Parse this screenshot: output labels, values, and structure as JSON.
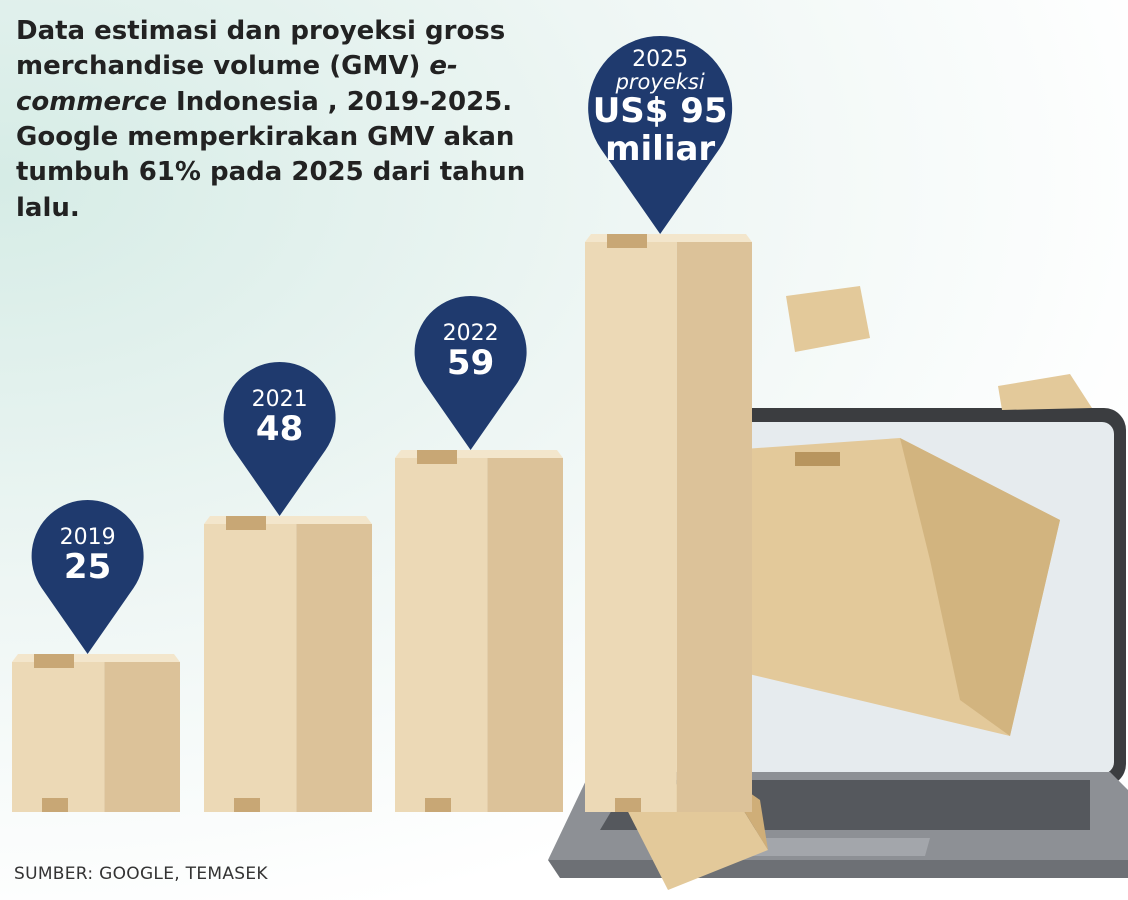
{
  "chart_data": {
    "type": "bar",
    "title": [
      "Data estimasi dan proyeksi gross merchandise volume (GMV) ",
      "e-commerce",
      " Indonesia , 2019-2025. Google memperkirakan GMV akan tumbuh 61% pada 2025 dari tahun lalu."
    ],
    "categories": [
      "2019",
      "2021",
      "2022",
      "2025"
    ],
    "values": [
      25,
      48,
      59,
      95
    ],
    "value_labels": [
      "25",
      "48",
      "59",
      "US$ 95 miliar"
    ],
    "annotation": "proyeksi",
    "color": "#1f3a6e",
    "source": "SUMBER: GOOGLE, TEMASEK"
  }
}
